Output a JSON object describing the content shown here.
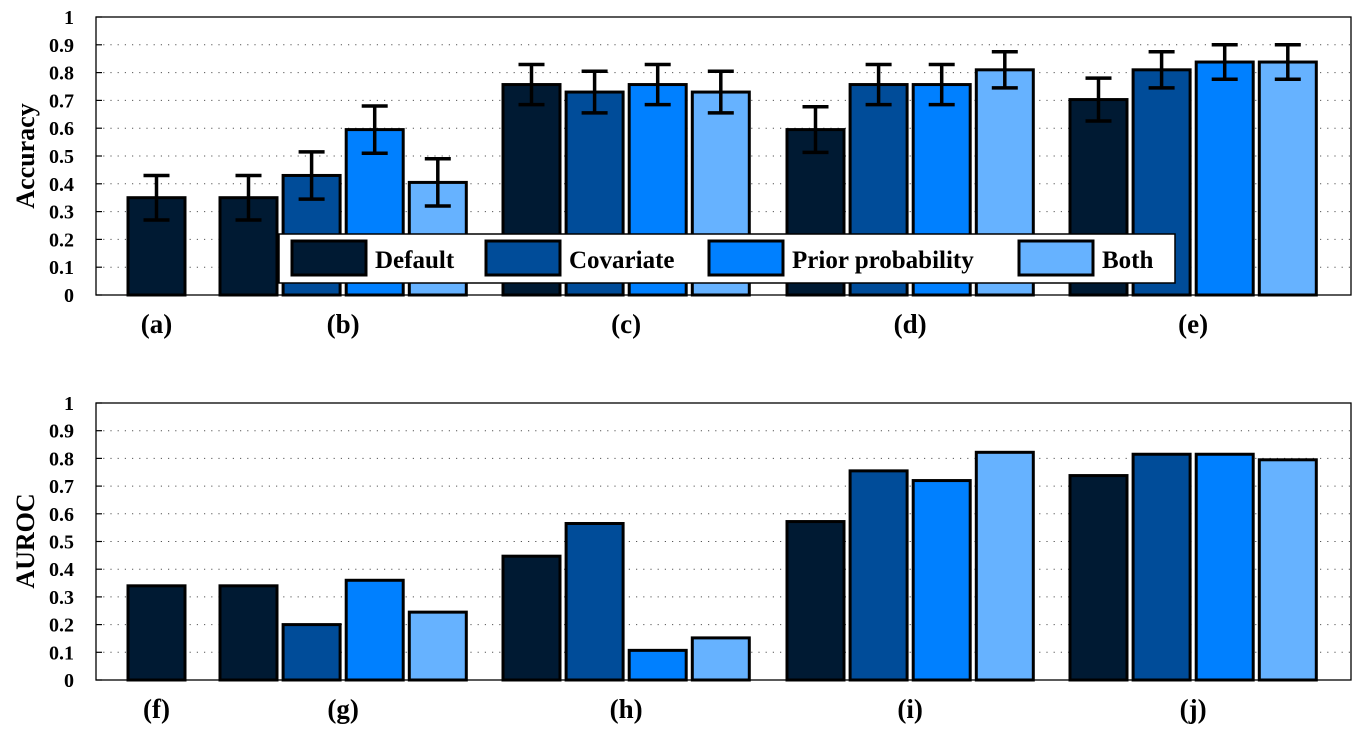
{
  "colors": {
    "Default": "#001a33",
    "Covariate": "#004c99",
    "Prior probability": "#0080ff",
    "Both": "#66b2ff"
  },
  "legend": {
    "placement": "bottom-center of top panel",
    "entries": [
      "Default",
      "Covariate",
      "Prior probability",
      "Both"
    ]
  },
  "chart_data": [
    {
      "type": "bar",
      "ylabel": "Accuracy",
      "ylim": [
        0,
        1
      ],
      "yticks": [
        "0",
        "0.1",
        "0.2",
        "0.3",
        "0.4",
        "0.5",
        "0.6",
        "0.7",
        "0.8",
        "0.9",
        "1"
      ],
      "grid": "horizontal dotted",
      "groups": [
        {
          "label": "(a)",
          "bars": [
            {
              "series": "Default",
              "value": 0.35,
              "err": 0.08
            }
          ]
        },
        {
          "label": "(b)",
          "bars": [
            {
              "series": "Default",
              "value": 0.35,
              "err": 0.08
            },
            {
              "series": "Covariate",
              "value": 0.43,
              "err": 0.085
            },
            {
              "series": "Prior probability",
              "value": 0.595,
              "err": 0.085
            },
            {
              "series": "Both",
              "value": 0.405,
              "err": 0.085
            }
          ]
        },
        {
          "label": "(c)",
          "bars": [
            {
              "series": "Default",
              "value": 0.757,
              "err": 0.072
            },
            {
              "series": "Covariate",
              "value": 0.73,
              "err": 0.075
            },
            {
              "series": "Prior probability",
              "value": 0.757,
              "err": 0.072
            },
            {
              "series": "Both",
              "value": 0.73,
              "err": 0.075
            }
          ]
        },
        {
          "label": "(d)",
          "bars": [
            {
              "series": "Default",
              "value": 0.595,
              "err": 0.082
            },
            {
              "series": "Covariate",
              "value": 0.757,
              "err": 0.072
            },
            {
              "series": "Prior probability",
              "value": 0.757,
              "err": 0.072
            },
            {
              "series": "Both",
              "value": 0.81,
              "err": 0.065
            }
          ]
        },
        {
          "label": "(e)",
          "bars": [
            {
              "series": "Default",
              "value": 0.703,
              "err": 0.077
            },
            {
              "series": "Covariate",
              "value": 0.81,
              "err": 0.065
            },
            {
              "series": "Prior probability",
              "value": 0.838,
              "err": 0.062
            },
            {
              "series": "Both",
              "value": 0.838,
              "err": 0.062
            }
          ]
        }
      ]
    },
    {
      "type": "bar",
      "ylabel": "AUROC",
      "ylim": [
        0,
        1
      ],
      "yticks": [
        "0",
        "0.1",
        "0.2",
        "0.3",
        "0.4",
        "0.5",
        "0.6",
        "0.7",
        "0.8",
        "0.9",
        "1"
      ],
      "grid": "horizontal dotted",
      "groups": [
        {
          "label": "(f)",
          "bars": [
            {
              "series": "Default",
              "value": 0.34
            }
          ]
        },
        {
          "label": "(g)",
          "bars": [
            {
              "series": "Default",
              "value": 0.34
            },
            {
              "series": "Covariate",
              "value": 0.2
            },
            {
              "series": "Prior probability",
              "value": 0.36
            },
            {
              "series": "Both",
              "value": 0.245
            }
          ]
        },
        {
          "label": "(h)",
          "bars": [
            {
              "series": "Default",
              "value": 0.447
            },
            {
              "series": "Covariate",
              "value": 0.565
            },
            {
              "series": "Prior probability",
              "value": 0.107
            },
            {
              "series": "Both",
              "value": 0.152
            }
          ]
        },
        {
          "label": "(i)",
          "bars": [
            {
              "series": "Default",
              "value": 0.572
            },
            {
              "series": "Covariate",
              "value": 0.755
            },
            {
              "series": "Prior probability",
              "value": 0.72
            },
            {
              "series": "Both",
              "value": 0.822
            }
          ]
        },
        {
          "label": "(j)",
          "bars": [
            {
              "series": "Default",
              "value": 0.738
            },
            {
              "series": "Covariate",
              "value": 0.815
            },
            {
              "series": "Prior probability",
              "value": 0.815
            },
            {
              "series": "Both",
              "value": 0.795
            }
          ]
        }
      ]
    }
  ]
}
